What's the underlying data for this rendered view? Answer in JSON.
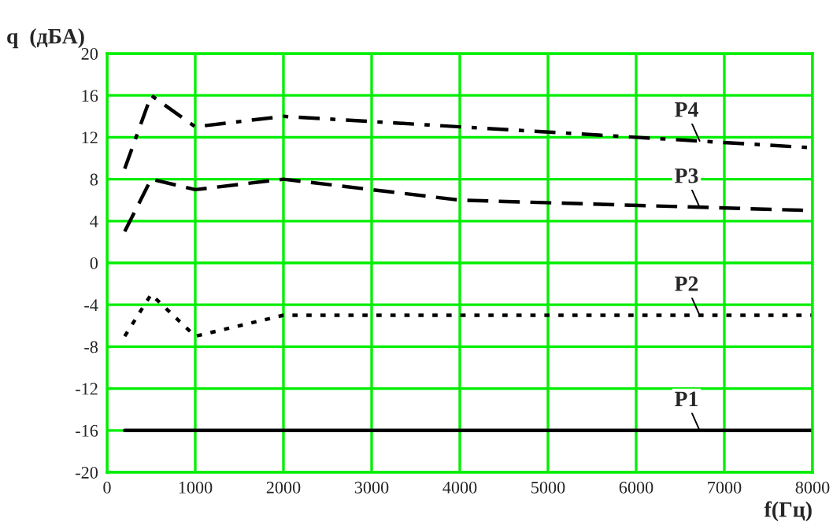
{
  "chart_data": {
    "type": "line",
    "xlabel": "f(Гц)",
    "ylabel": "q  (дБА)",
    "x": [
      200,
      500,
      1000,
      2000,
      4000,
      8000
    ],
    "series": [
      {
        "name": "P1",
        "color": "#000000",
        "line_style": "solid",
        "values": [
          -16,
          -16,
          -16,
          -16,
          -16,
          -16
        ]
      },
      {
        "name": "P2",
        "color": "#000000",
        "line_style": "dotted",
        "values": [
          -7,
          -3,
          -7,
          -5,
          -5,
          -5
        ]
      },
      {
        "name": "P3",
        "color": "#000000",
        "line_style": "dashed",
        "values": [
          3,
          8,
          7,
          8,
          6,
          5
        ]
      },
      {
        "name": "P4",
        "color": "#000000",
        "line_style": "dashdot",
        "values": [
          9,
          16,
          13,
          14,
          13,
          11
        ]
      }
    ],
    "xlim": [
      0,
      8000
    ],
    "xticks": [
      0,
      1000,
      2000,
      3000,
      4000,
      5000,
      6000,
      7000,
      8000
    ],
    "ylim": [
      -20,
      20
    ],
    "yticks": [
      -20,
      -16,
      -12,
      -8,
      -4,
      0,
      4,
      8,
      12,
      16,
      20
    ],
    "grid": true
  }
}
